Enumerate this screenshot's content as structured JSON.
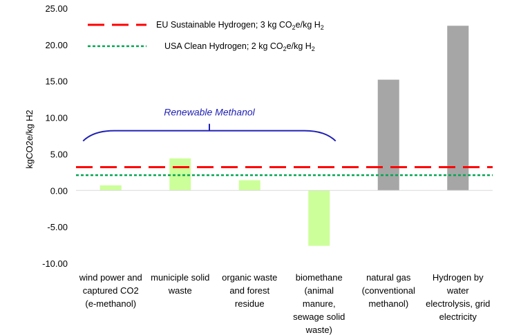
{
  "chart_data": {
    "type": "bar",
    "title": "",
    "xlabel": "",
    "ylabel": "kgCO2e/kg H2",
    "ylim": [
      -10,
      25
    ],
    "yticks": [
      "25.00",
      "20.00",
      "15.00",
      "10.00",
      "5.00",
      "0.00",
      "-5.00",
      "-10.00"
    ],
    "grid": false,
    "categories": [
      [
        "wind power and",
        "captured CO2",
        "(e-methanol)"
      ],
      [
        "municiple solid",
        "waste"
      ],
      [
        "organic waste",
        "and forest",
        "residue"
      ],
      [
        "biomethane",
        "(animal",
        "manure,",
        "sewage solid",
        "waste)"
      ],
      [
        "natural gas",
        "(conventional",
        "methanol)"
      ],
      [
        "Hydrogen by",
        "water",
        "electrolysis, grid",
        "electricity"
      ]
    ],
    "values": [
      0.7,
      4.4,
      1.4,
      -7.6,
      15.2,
      22.6
    ],
    "bar_colors": [
      "#ccff99",
      "#ccff99",
      "#ccff99",
      "#ccff99",
      "#a6a6a6",
      "#a6a6a6"
    ],
    "reference_lines": [
      {
        "label_prefix": "EU Sustainable Hydrogen; 3 kg CO",
        "label_sub1": "2",
        "label_mid": "e/kg H",
        "label_sub2": "2",
        "value": 3.2,
        "color": "#ff0000",
        "style": "dashed"
      },
      {
        "label_prefix": "USA Clean Hydrogen; 2 kg CO",
        "label_sub1": "2",
        "label_mid": "e/kg H",
        "label_sub2": "2",
        "value": 2.1,
        "color": "#00a651",
        "style": "dotted"
      }
    ],
    "annotation": {
      "text": "Renewable Methanol",
      "color": "#1f1fb4",
      "spans_categories": [
        0,
        3
      ],
      "bracket_value": 8.2
    },
    "legend_position": "top-left"
  }
}
